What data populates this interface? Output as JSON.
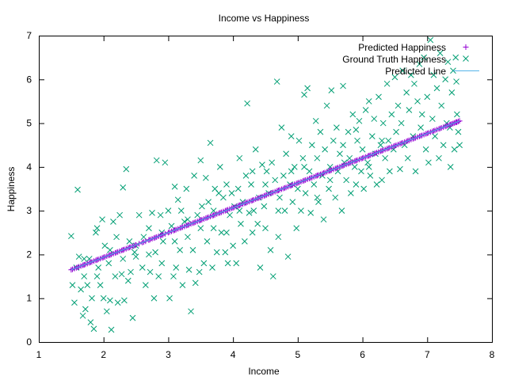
{
  "chart_data": {
    "type": "scatter",
    "title": "Income vs Happiness",
    "xlabel": "Income",
    "ylabel": "Happiness",
    "xlim": [
      1,
      8
    ],
    "ylim": [
      0,
      7
    ],
    "x_ticks": [
      "1",
      "2",
      "3",
      "4",
      "5",
      "6",
      "7",
      "8"
    ],
    "y_ticks": [
      "0",
      "1",
      "2",
      "3",
      "4",
      "5",
      "6",
      "7"
    ],
    "legend_position": "top-right",
    "grid": false,
    "line": {
      "x_start": 1.5,
      "x_end": 7.5,
      "y_start": 1.65,
      "y_end": 5.05
    },
    "series": [
      {
        "name": "Predicted Happiness",
        "marker": "plus",
        "color": "#9400d3"
      },
      {
        "name": "Ground Truth Happiness",
        "marker": "cross",
        "color": "#009e73",
        "points": [
          [
            1.5,
            2.42
          ],
          [
            1.52,
            1.3
          ],
          [
            1.55,
            0.9
          ],
          [
            1.58,
            1.7
          ],
          [
            1.6,
            3.48
          ],
          [
            1.62,
            1.95
          ],
          [
            1.65,
            1.2
          ],
          [
            1.68,
            0.6
          ],
          [
            1.7,
            1.5
          ],
          [
            1.72,
            0.75
          ],
          [
            1.75,
            1.3
          ],
          [
            1.78,
            1.9
          ],
          [
            1.8,
            0.45
          ],
          [
            1.82,
            1.0
          ],
          [
            1.85,
            0.3
          ],
          [
            1.88,
            2.5
          ],
          [
            1.9,
            2.6
          ],
          [
            1.92,
            1.7
          ],
          [
            1.95,
            1.3
          ],
          [
            1.98,
            2.8
          ],
          [
            2.0,
            1.0
          ],
          [
            2.02,
            2.2
          ],
          [
            2.05,
            0.7
          ],
          [
            2.08,
            1.8
          ],
          [
            2.1,
            0.95
          ],
          [
            2.12,
            0.28
          ],
          [
            2.15,
            2.75
          ],
          [
            2.18,
            1.5
          ],
          [
            2.2,
            2.4
          ],
          [
            2.22,
            0.9
          ],
          [
            2.25,
            2.9
          ],
          [
            2.28,
            1.55
          ],
          [
            2.3,
            3.53
          ],
          [
            2.32,
            0.95
          ],
          [
            2.35,
            3.95
          ],
          [
            2.38,
            1.4
          ],
          [
            2.4,
            2.3
          ],
          [
            2.42,
            1.6
          ],
          [
            2.45,
            0.55
          ],
          [
            2.48,
            2.05
          ],
          [
            2.5,
            1.95
          ],
          [
            2.55,
            2.9
          ],
          [
            2.6,
            1.7
          ],
          [
            2.62,
            2.4
          ],
          [
            2.65,
            1.3
          ],
          [
            2.7,
            2.6
          ],
          [
            2.72,
            1.6
          ],
          [
            2.75,
            2.95
          ],
          [
            2.78,
            1.0
          ],
          [
            2.8,
            2.05
          ],
          [
            2.82,
            4.15
          ],
          [
            2.85,
            1.5
          ],
          [
            2.88,
            2.9
          ],
          [
            2.9,
            1.8
          ],
          [
            2.92,
            2.3
          ],
          [
            2.95,
            4.1
          ],
          [
            3.0,
            3.0
          ],
          [
            3.02,
            1.0
          ],
          [
            3.05,
            2.65
          ],
          [
            3.08,
            1.5
          ],
          [
            3.1,
            3.55
          ],
          [
            3.12,
            1.7
          ],
          [
            3.15,
            3.25
          ],
          [
            3.18,
            2.1
          ],
          [
            3.2,
            3.0
          ],
          [
            3.22,
            1.3
          ],
          [
            3.25,
            2.75
          ],
          [
            3.28,
            3.5
          ],
          [
            3.3,
            2.4
          ],
          [
            3.32,
            1.65
          ],
          [
            3.35,
            0.7
          ],
          [
            3.38,
            2.1
          ],
          [
            3.4,
            3.8
          ],
          [
            3.42,
            1.35
          ],
          [
            3.45,
            2.9
          ],
          [
            3.48,
            1.6
          ],
          [
            3.5,
            4.15
          ],
          [
            3.52,
            3.1
          ],
          [
            3.55,
            1.8
          ],
          [
            3.58,
            3.75
          ],
          [
            3.6,
            2.3
          ],
          [
            3.62,
            3.2
          ],
          [
            3.65,
            4.55
          ],
          [
            3.68,
            1.7
          ],
          [
            3.7,
            2.6
          ],
          [
            3.72,
            3.5
          ],
          [
            3.75,
            2.05
          ],
          [
            3.78,
            3.4
          ],
          [
            3.8,
            4.0
          ],
          [
            3.82,
            2.5
          ],
          [
            3.85,
            3.3
          ],
          [
            3.88,
            2.05
          ],
          [
            3.9,
            3.6
          ],
          [
            3.92,
            1.8
          ],
          [
            3.95,
            2.9
          ],
          [
            3.98,
            3.4
          ],
          [
            4.0,
            2.2
          ],
          [
            4.02,
            3.1
          ],
          [
            4.05,
            1.8
          ],
          [
            4.08,
            3.5
          ],
          [
            4.1,
            4.2
          ],
          [
            4.12,
            2.7
          ],
          [
            4.15,
            3.2
          ],
          [
            4.18,
            2.3
          ],
          [
            4.2,
            3.8
          ],
          [
            4.22,
            5.45
          ],
          [
            4.25,
            2.95
          ],
          [
            4.28,
            3.6
          ],
          [
            4.3,
            2.5
          ],
          [
            4.32,
            3.0
          ],
          [
            4.35,
            4.4
          ],
          [
            4.38,
            2.7
          ],
          [
            4.4,
            3.3
          ],
          [
            4.42,
            1.7
          ],
          [
            4.45,
            4.05
          ],
          [
            4.48,
            3.1
          ],
          [
            4.5,
            2.6
          ],
          [
            4.52,
            3.9
          ],
          [
            4.55,
            3.4
          ],
          [
            4.58,
            2.1
          ],
          [
            4.6,
            4.1
          ],
          [
            4.62,
            1.5
          ],
          [
            4.65,
            3.7
          ],
          [
            4.68,
            5.95
          ],
          [
            4.7,
            2.4
          ],
          [
            4.72,
            3.3
          ],
          [
            4.75,
            4.9
          ],
          [
            4.78,
            3.8
          ],
          [
            4.8,
            3.0
          ],
          [
            4.82,
            4.3
          ],
          [
            4.85,
            1.95
          ],
          [
            4.88,
            3.6
          ],
          [
            4.9,
            4.7
          ],
          [
            4.92,
            3.2
          ],
          [
            4.95,
            4.0
          ],
          [
            4.98,
            2.6
          ],
          [
            5.0,
            3.5
          ],
          [
            5.02,
            4.6
          ],
          [
            5.05,
            3.0
          ],
          [
            5.08,
            4.2
          ],
          [
            5.1,
            5.65
          ],
          [
            5.12,
            3.4
          ],
          [
            5.15,
            5.8
          ],
          [
            5.18,
            3.9
          ],
          [
            5.2,
            2.95
          ],
          [
            5.22,
            4.5
          ],
          [
            5.25,
            3.6
          ],
          [
            5.28,
            5.05
          ],
          [
            5.3,
            4.2
          ],
          [
            5.32,
            3.2
          ],
          [
            5.35,
            4.8
          ],
          [
            5.38,
            3.8
          ],
          [
            5.4,
            2.8
          ],
          [
            5.42,
            4.4
          ],
          [
            5.45,
            5.4
          ],
          [
            5.48,
            3.5
          ],
          [
            5.5,
            4.0
          ],
          [
            5.52,
            5.75
          ],
          [
            5.55,
            4.6
          ],
          [
            5.58,
            3.3
          ],
          [
            5.6,
            4.9
          ],
          [
            5.62,
            3.9
          ],
          [
            5.65,
            4.3
          ],
          [
            5.68,
            3.0
          ],
          [
            5.7,
            5.85
          ],
          [
            5.72,
            4.1
          ],
          [
            5.75,
            3.7
          ],
          [
            5.78,
            4.8
          ],
          [
            5.8,
            4.2
          ],
          [
            5.82,
            3.4
          ],
          [
            5.85,
            5.2
          ],
          [
            5.88,
            4.0
          ],
          [
            5.9,
            3.6
          ],
          [
            5.92,
            4.6
          ],
          [
            5.95,
            5.05
          ],
          [
            5.98,
            3.9
          ],
          [
            6.0,
            4.4
          ],
          [
            6.02,
            3.5
          ],
          [
            6.05,
            5.3
          ],
          [
            6.08,
            4.1
          ],
          [
            6.1,
            5.5
          ],
          [
            6.12,
            3.8
          ],
          [
            6.15,
            4.7
          ],
          [
            6.18,
            5.1
          ],
          [
            6.2,
            4.3
          ],
          [
            6.22,
            3.6
          ],
          [
            6.25,
            5.6
          ],
          [
            6.28,
            4.5
          ],
          [
            6.3,
            3.7
          ],
          [
            6.32,
            5.0
          ],
          [
            6.35,
            4.2
          ],
          [
            6.38,
            5.9
          ],
          [
            6.4,
            4.6
          ],
          [
            6.42,
            3.9
          ],
          [
            6.45,
            5.2
          ],
          [
            6.48,
            4.4
          ],
          [
            6.5,
            6.05
          ],
          [
            6.52,
            4.8
          ],
          [
            6.55,
            5.4
          ],
          [
            6.58,
            3.95
          ],
          [
            6.6,
            5.0
          ],
          [
            6.62,
            6.2
          ],
          [
            6.65,
            4.5
          ],
          [
            6.68,
            5.7
          ],
          [
            6.7,
            4.2
          ],
          [
            6.72,
            5.3
          ],
          [
            6.75,
            6.1
          ],
          [
            6.78,
            4.7
          ],
          [
            6.8,
            5.9
          ],
          [
            6.82,
            3.9
          ],
          [
            6.85,
            5.5
          ],
          [
            6.88,
            6.35
          ],
          [
            6.9,
            4.9
          ],
          [
            6.92,
            5.2
          ],
          [
            6.95,
            6.5
          ],
          [
            6.98,
            4.4
          ],
          [
            7.0,
            5.6
          ],
          [
            7.02,
            4.1
          ],
          [
            7.05,
            6.9
          ],
          [
            7.08,
            5.1
          ],
          [
            7.1,
            6.1
          ],
          [
            7.12,
            4.7
          ],
          [
            7.15,
            5.8
          ],
          [
            7.18,
            4.2
          ],
          [
            7.2,
            6.6
          ],
          [
            7.22,
            5.4
          ],
          [
            7.25,
            4.5
          ],
          [
            7.28,
            6.0
          ],
          [
            7.3,
            5.0
          ],
          [
            7.32,
            6.4
          ],
          [
            7.35,
            4.9
          ],
          [
            7.38,
            5.7
          ],
          [
            7.4,
            6.2
          ],
          [
            7.42,
            4.4
          ],
          [
            7.45,
            5.95
          ],
          [
            7.48,
            4.8
          ],
          [
            7.5,
            4.5
          ],
          [
            7.46,
            5.2
          ],
          [
            7.44,
            6.5
          ],
          [
            7.36,
            4.0
          ],
          [
            6.3,
            4.6
          ],
          [
            6.1,
            4.0
          ],
          [
            5.9,
            4.85
          ],
          [
            5.7,
            4.5
          ],
          [
            5.5,
            3.7
          ],
          [
            5.3,
            3.3
          ],
          [
            5.1,
            4.0
          ],
          [
            4.9,
            3.9
          ],
          [
            4.7,
            3.0
          ],
          [
            4.5,
            3.6
          ],
          [
            4.3,
            3.9
          ],
          [
            4.1,
            3.0
          ],
          [
            3.9,
            2.5
          ],
          [
            3.7,
            3.0
          ],
          [
            3.5,
            2.6
          ],
          [
            3.3,
            2.8
          ],
          [
            3.1,
            2.3
          ],
          [
            2.9,
            2.5
          ],
          [
            2.7,
            2.0
          ],
          [
            2.5,
            2.2
          ],
          [
            2.3,
            1.9
          ],
          [
            2.1,
            2.1
          ],
          [
            1.9,
            1.5
          ],
          [
            1.7,
            1.9
          ]
        ]
      },
      {
        "name": "Predicted Line",
        "marker": "line",
        "color": "#56b4e9"
      }
    ]
  }
}
